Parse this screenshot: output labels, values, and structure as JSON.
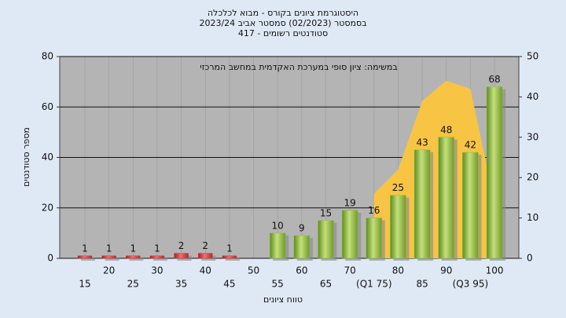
{
  "chart_data": {
    "type": "bar",
    "title": [
      "היסטוגרמת ציונים בקורס - מבוא לכלכלה",
      "בסמסטר  (02/2023)  סמסטר אביב 2023/24",
      "סטודנטים רשומים - 417"
    ],
    "annotation": "במשימה: ציון סופי במערכת האקדמית במחשב המרכזי",
    "y_label": "מספר סטודנטים",
    "x_label": "טווח ציונים",
    "categories": [
      "15",
      "20",
      "25",
      "30",
      "35",
      "40",
      "45",
      "50",
      "55",
      "60",
      "65",
      "70",
      "(Q1 75)",
      "80",
      "85",
      "90",
      "(Q3 95)",
      "100"
    ],
    "series": [
      {
        "type": "bar",
        "colors": [
          "#d93a3a",
          "#d93a3a",
          "#d93a3a",
          "#d93a3a",
          "#d93a3a",
          "#d93a3a",
          "#d93a3a",
          "#d93a3a",
          "#8cc043",
          "#8cc043",
          "#8cc043",
          "#8cc043",
          "#8cc043",
          "#8cc043",
          "#8cc043",
          "#8cc043",
          "#8cc043",
          "#8cc043"
        ],
        "values": [
          1,
          1,
          1,
          1,
          2,
          2,
          1,
          null,
          10,
          9,
          15,
          19,
          16,
          25,
          43,
          48,
          42,
          68
        ]
      },
      {
        "type": "area",
        "axis": "y2",
        "color": "#f7c444",
        "values": [
          null,
          null,
          null,
          null,
          null,
          null,
          null,
          null,
          null,
          null,
          null,
          null,
          16,
          22,
          39,
          44,
          42,
          14
        ]
      }
    ],
    "ylim": [
      0,
      80
    ],
    "yticks": [
      0,
      20,
      40,
      60,
      80
    ],
    "y2lim": [
      0,
      50
    ],
    "y2ticks": [
      0,
      10,
      20,
      30,
      40,
      50
    ],
    "grid": true
  }
}
